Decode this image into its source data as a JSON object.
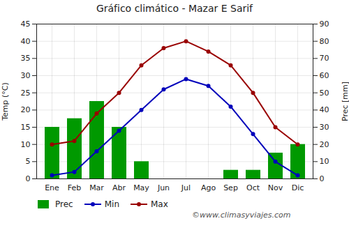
{
  "chart_data": {
    "type": "bar",
    "title": "Gráfico climático - Mazar E Sarif",
    "categories": [
      "Ene",
      "Feb",
      "Mar",
      "Abr",
      "May",
      "Jun",
      "Jul",
      "Ago",
      "Sep",
      "Oct",
      "Nov",
      "Dic"
    ],
    "series": [
      {
        "name": "Prec",
        "type": "bar",
        "axis": "y2",
        "color": "#009900",
        "values": [
          30,
          35,
          45,
          30,
          10,
          0,
          0,
          0,
          5,
          5,
          15,
          20
        ]
      },
      {
        "name": "Min",
        "type": "line",
        "marker": "circle",
        "color": "#0000bb",
        "values": [
          1,
          2,
          8,
          14,
          20,
          26,
          29,
          27,
          21,
          13,
          5,
          1
        ]
      },
      {
        "name": "Max",
        "type": "line",
        "marker": "circle",
        "color": "#990000",
        "values": [
          10,
          11,
          19,
          25,
          33,
          38,
          40,
          37,
          33,
          25,
          15,
          10
        ]
      }
    ],
    "ylabel": "Temp (°C)",
    "y2label": "Prec [mm]",
    "ylim": [
      0,
      45
    ],
    "yticks": [
      0,
      5,
      10,
      15,
      20,
      25,
      30,
      35,
      40,
      45
    ],
    "y2lim": [
      0,
      90
    ],
    "y2ticks": [
      0,
      10,
      20,
      30,
      40,
      50,
      60,
      70,
      80,
      90
    ],
    "grid": true,
    "legend": "bottom",
    "annotations": [
      "©www.climasyviajes.com"
    ]
  }
}
